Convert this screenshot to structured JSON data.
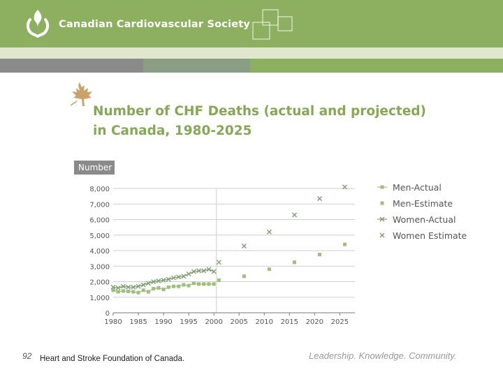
{
  "header": {
    "org_name": "Canadian Cardiovascular Society",
    "color": "#8db060"
  },
  "chart_data": {
    "type": "scatter",
    "title": "Number of CHF Deaths (actual and projected) in Canada, 1980-2025",
    "ylabel": "Number",
    "xlabel": "",
    "xlim": [
      1980,
      2028
    ],
    "ylim": [
      0,
      8000
    ],
    "x_ticks": [
      1980,
      1985,
      1990,
      1995,
      2000,
      2005,
      2010,
      2015,
      2020,
      2025
    ],
    "x_tick_labels": [
      "1980",
      "1985",
      "1990",
      "1995",
      "2000",
      "2005",
      "2010",
      "2015",
      "2020",
      "2025"
    ],
    "y_ticks": [
      0,
      1000,
      2000,
      3000,
      4000,
      5000,
      6000,
      7000,
      8000
    ],
    "y_tick_labels": [
      "0",
      "1,000",
      "2,000",
      "3,000",
      "4,000",
      "5,000",
      "6,000",
      "7,000",
      "8,000"
    ],
    "legend_position": "right",
    "series": [
      {
        "name": "Men-Actual",
        "marker": "square",
        "color": "#9fbf7f",
        "line": true,
        "x": [
          1980,
          1981,
          1982,
          1983,
          1984,
          1985,
          1986,
          1987,
          1988,
          1989,
          1990,
          1991,
          1992,
          1993,
          1994,
          1995,
          1996,
          1997,
          1998,
          1999,
          2000
        ],
        "y": [
          1450,
          1350,
          1400,
          1380,
          1350,
          1300,
          1450,
          1350,
          1550,
          1600,
          1500,
          1650,
          1700,
          1700,
          1800,
          1750,
          1900,
          1850,
          1850,
          1850,
          1850
        ]
      },
      {
        "name": "Men-Estimate",
        "marker": "square",
        "color": "#9fbf7f",
        "line": false,
        "x": [
          2001,
          2006,
          2011,
          2016,
          2021,
          2026
        ],
        "y": [
          2100,
          2350,
          2800,
          3250,
          3750,
          4400
        ]
      },
      {
        "name": "Women-Actual",
        "marker": "x",
        "color": "#7f9e6f",
        "line": true,
        "x": [
          1980,
          1981,
          1982,
          1983,
          1984,
          1985,
          1986,
          1987,
          1988,
          1989,
          1990,
          1991,
          1992,
          1993,
          1994,
          1995,
          1996,
          1997,
          1998,
          1999,
          2000
        ],
        "y": [
          1650,
          1600,
          1700,
          1650,
          1650,
          1700,
          1800,
          1900,
          2000,
          2050,
          2100,
          2150,
          2250,
          2300,
          2350,
          2500,
          2650,
          2700,
          2700,
          2800,
          2650
        ]
      },
      {
        "name": "Women Estimate",
        "marker": "x",
        "color": "#7f9e6f",
        "line": false,
        "x": [
          2001,
          2006,
          2011,
          2016,
          2021,
          2026
        ],
        "y": [
          3250,
          4300,
          5200,
          6300,
          7350,
          8100
        ]
      }
    ]
  },
  "footer": {
    "slide_number": "92",
    "source": "Heart and Stroke Foundation of Canada.",
    "tagline": "Leadership. Knowledge. Community."
  }
}
